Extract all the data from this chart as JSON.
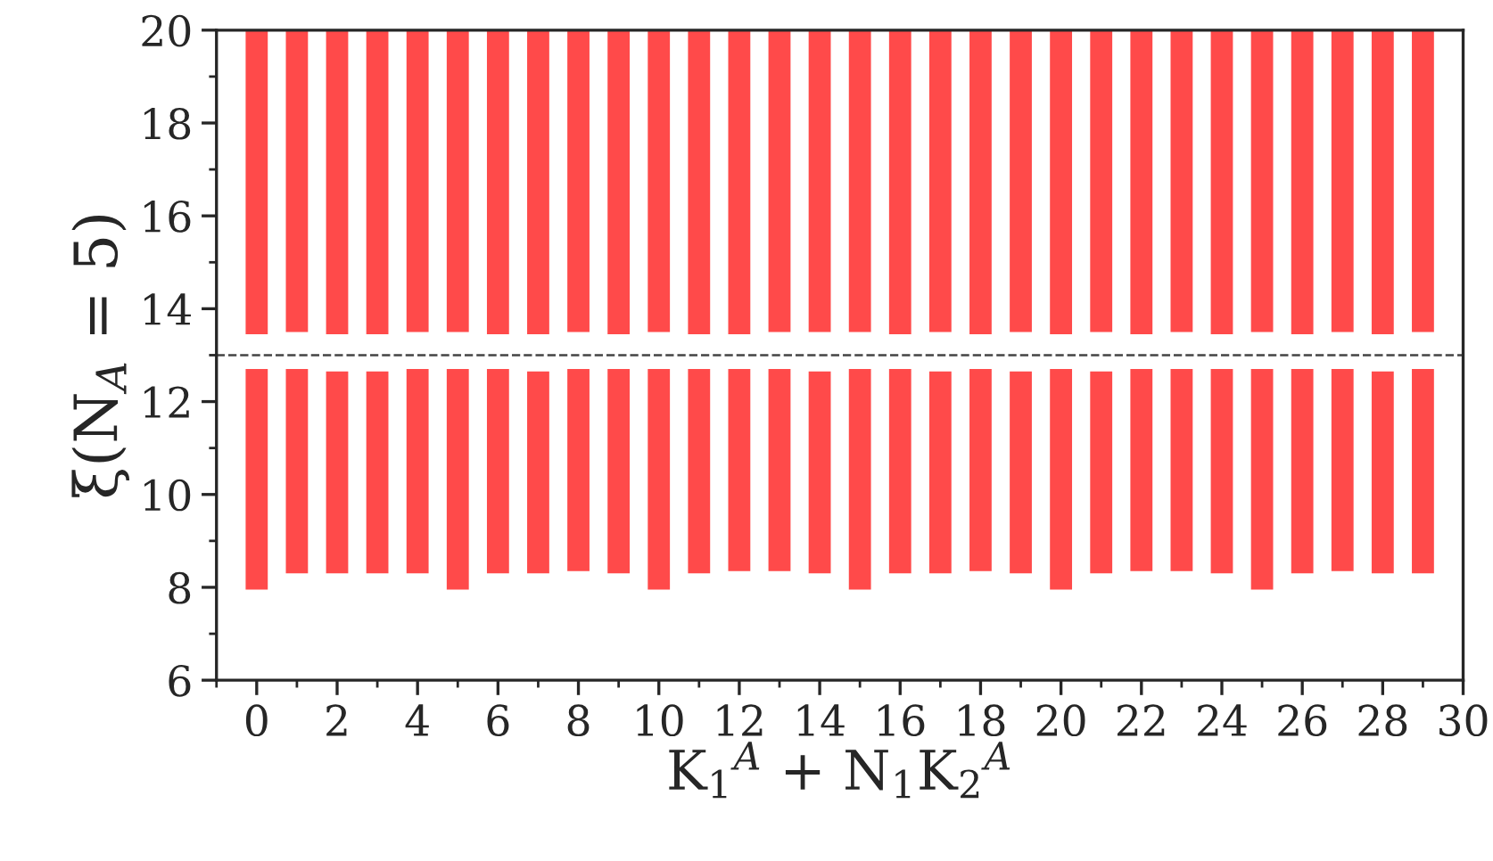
{
  "chart_data": {
    "type": "bar",
    "xlabel": "K$_{1}$$^{A}$ + N$_{1}$K$_{2}$$^{A}$",
    "ylabel": "ξ(N$_{A}$ = 5)",
    "x": [
      0,
      1,
      2,
      3,
      4,
      5,
      6,
      7,
      8,
      9,
      10,
      11,
      12,
      13,
      14,
      15,
      16,
      17,
      18,
      19,
      20,
      21,
      22,
      23,
      24,
      25,
      26,
      27,
      28,
      29
    ],
    "series": [
      {
        "color": "#ff4a4a",
        "base": [
          7.95,
          8.3,
          8.3,
          8.3,
          8.3,
          7.95,
          8.3,
          8.3,
          8.35,
          8.3,
          7.95,
          8.3,
          8.35,
          8.35,
          8.3,
          7.95,
          8.3,
          8.3,
          8.35,
          8.3,
          7.95,
          8.3,
          8.35,
          8.35,
          8.3,
          7.95,
          8.3,
          8.35,
          8.3,
          8.3
        ],
        "values": [
          4.75,
          4.4,
          4.35,
          4.35,
          4.4,
          4.75,
          4.4,
          4.35,
          4.35,
          4.4,
          4.75,
          4.4,
          4.35,
          4.35,
          4.35,
          4.75,
          4.4,
          4.35,
          4.35,
          4.35,
          4.75,
          4.35,
          4.35,
          4.35,
          4.4,
          4.75,
          4.4,
          4.35,
          4.35,
          4.4
        ]
      },
      {
        "color": "#ff4a4a",
        "base": [
          13.45,
          13.5,
          13.45,
          13.45,
          13.5,
          13.5,
          13.45,
          13.45,
          13.5,
          13.45,
          13.5,
          13.45,
          13.45,
          13.5,
          13.5,
          13.5,
          13.45,
          13.5,
          13.45,
          13.5,
          13.45,
          13.5,
          13.45,
          13.5,
          13.45,
          13.5,
          13.45,
          13.5,
          13.45,
          13.5
        ],
        "values": [
          6.55,
          6.5,
          6.55,
          6.55,
          6.5,
          6.5,
          6.55,
          6.55,
          6.5,
          6.55,
          6.5,
          6.55,
          6.55,
          6.5,
          6.5,
          6.5,
          6.55,
          6.5,
          6.55,
          6.5,
          6.55,
          6.5,
          6.55,
          6.5,
          6.55,
          6.5,
          6.55,
          6.5,
          6.55,
          6.5
        ]
      }
    ],
    "xlim": [
      -1,
      30
    ],
    "xticks": [
      0,
      2,
      4,
      6,
      8,
      10,
      12,
      14,
      16,
      18,
      20,
      22,
      24,
      26,
      28,
      30
    ],
    "ylim": [
      6,
      20
    ],
    "yticks": [
      6,
      8,
      10,
      12,
      14,
      16,
      18,
      20
    ],
    "ref_lines": [
      {
        "axis": "y",
        "value": 13,
        "color": "#444444",
        "line_style": "dashed"
      }
    ],
    "grid": false,
    "legend": false
  }
}
